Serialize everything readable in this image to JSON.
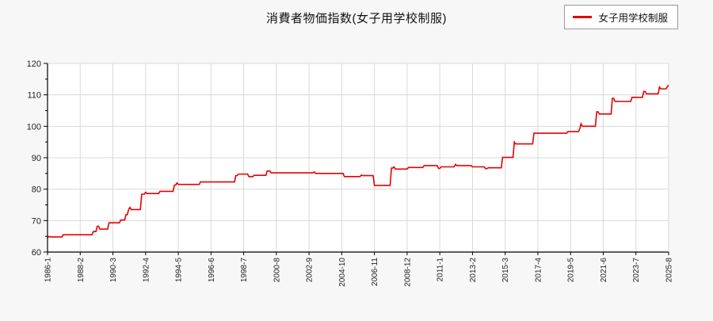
{
  "page": {
    "background": "#f7f7f7",
    "plot_background": "#ffffff"
  },
  "header": {
    "title": "消費者物価指数(女子用学校制服)"
  },
  "legend": {
    "label": "女子用学校制服",
    "line_color": "#e60000",
    "position": "top-right"
  },
  "chart_data": {
    "type": "line",
    "title": "消費者物価指数(女子用学校制服)",
    "series_name": "女子用学校制服",
    "line_color": "#e60000",
    "grid": true,
    "grid_color": "#d8d8d8",
    "axis_color": "#000000",
    "tick_label_color": "#222222",
    "ylim": [
      60,
      120
    ],
    "y_ticks": [
      60,
      70,
      80,
      90,
      100,
      110,
      120
    ],
    "y_minor_step": 5,
    "x_start": "1986-1",
    "x_end": "2025-8",
    "n_points": 476,
    "x_tick_interval_months": 25,
    "x_tick_labels": [
      "1986-1",
      "1988-2",
      "1990-3",
      "1992-4",
      "1994-5",
      "1996-6",
      "1998-7",
      "2000-8",
      "2002-9",
      "2004-10",
      "2006-11",
      "2008-12",
      "2011-1",
      "2013-2",
      "2015-3",
      "2017-4",
      "2019-5",
      "2021-6",
      "2023-7",
      "2025-8"
    ],
    "value_step_segments_note": "step function: [month_index_from_1986-1, CPI value]; value holds until next segment start",
    "segments": [
      [
        0,
        64.6
      ],
      [
        1,
        64.9
      ],
      [
        3,
        64.8
      ],
      [
        12,
        65.5
      ],
      [
        35,
        66.5
      ],
      [
        38,
        68.2
      ],
      [
        40,
        67.3
      ],
      [
        47,
        69.3
      ],
      [
        56,
        70.2
      ],
      [
        60,
        71.9
      ],
      [
        62,
        73.5
      ],
      [
        63,
        74.2
      ],
      [
        64,
        73.5
      ],
      [
        72,
        78.4
      ],
      [
        75,
        79.0
      ],
      [
        76,
        78.6
      ],
      [
        86,
        79.3
      ],
      [
        97,
        81.3
      ],
      [
        99,
        82.0
      ],
      [
        100,
        81.5
      ],
      [
        117,
        82.3
      ],
      [
        144,
        84.3
      ],
      [
        146,
        84.8
      ],
      [
        154,
        84.0
      ],
      [
        158,
        84.4
      ],
      [
        168,
        85.8
      ],
      [
        171,
        85.2
      ],
      [
        204,
        85.5
      ],
      [
        205,
        85.0
      ],
      [
        227,
        84.0
      ],
      [
        240,
        84.5
      ],
      [
        241,
        84.3
      ],
      [
        250,
        81.2
      ],
      [
        263,
        86.7
      ],
      [
        265,
        87.1
      ],
      [
        266,
        86.4
      ],
      [
        276,
        86.9
      ],
      [
        288,
        87.5
      ],
      [
        299,
        86.6
      ],
      [
        301,
        87.1
      ],
      [
        312,
        87.9
      ],
      [
        313,
        87.5
      ],
      [
        325,
        87.1
      ],
      [
        335,
        86.5
      ],
      [
        337,
        86.8
      ],
      [
        348,
        90.1
      ],
      [
        357,
        95.0
      ],
      [
        358,
        94.4
      ],
      [
        372,
        97.8
      ],
      [
        398,
        98.3
      ],
      [
        407,
        99.2
      ],
      [
        408,
        100.8
      ],
      [
        409,
        100.0
      ],
      [
        420,
        104.6
      ],
      [
        422,
        103.9
      ],
      [
        432,
        108.9
      ],
      [
        434,
        107.9
      ],
      [
        447,
        109.2
      ],
      [
        456,
        111.1
      ],
      [
        458,
        110.3
      ],
      [
        468,
        112.5
      ],
      [
        469,
        111.9
      ],
      [
        474,
        112.6
      ],
      [
        475,
        113.1
      ]
    ]
  }
}
